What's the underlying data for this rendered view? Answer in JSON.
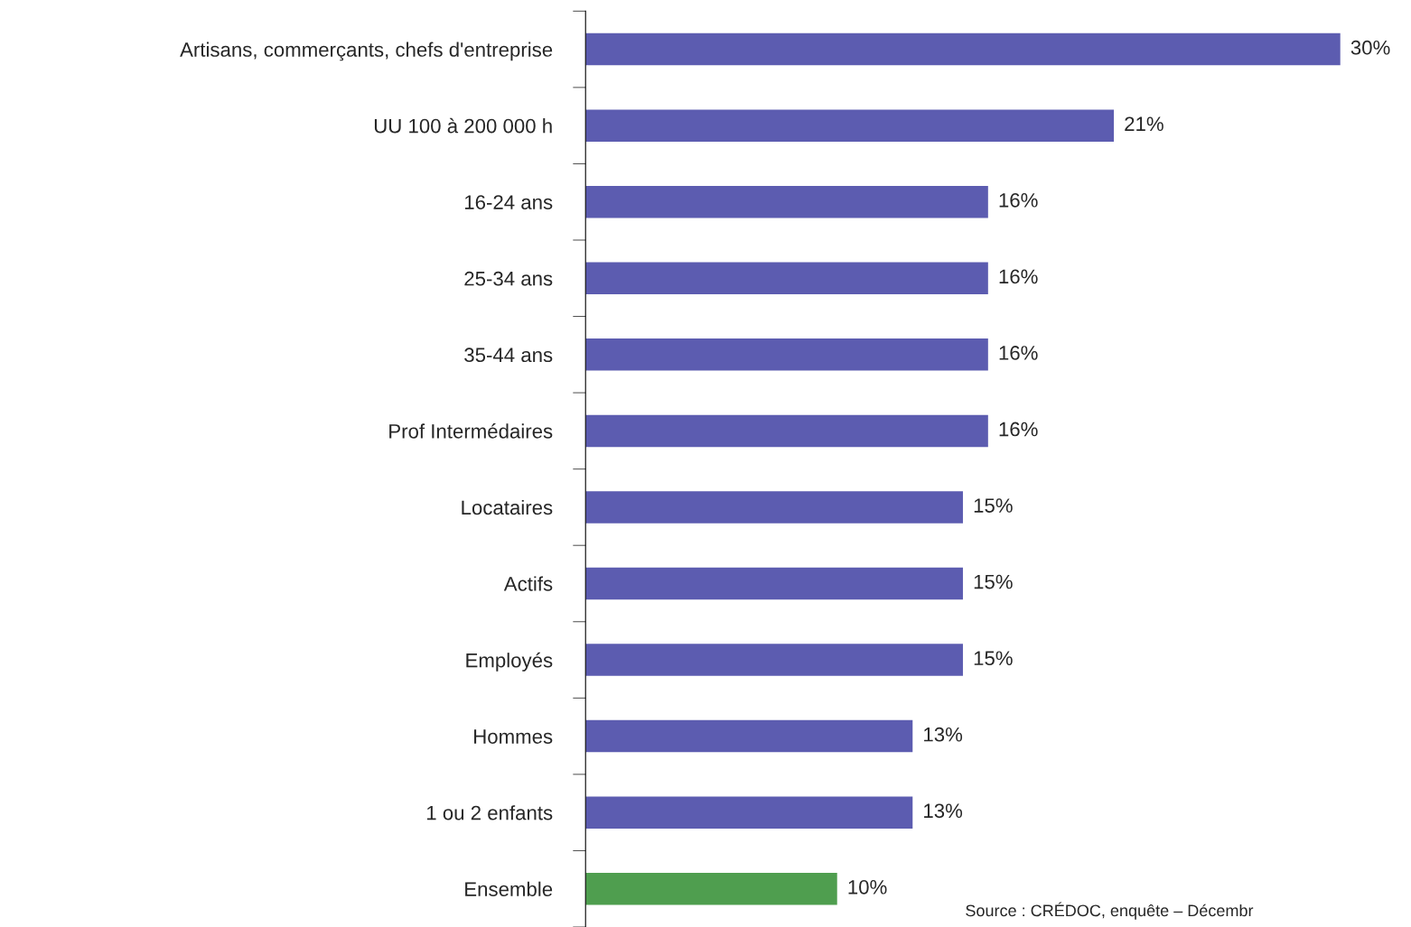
{
  "chart_data": {
    "type": "bar",
    "orientation": "horizontal",
    "categories": [
      "Artisans, commerçants, chefs d'entreprise",
      "UU 100 à 200 000 h",
      "16-24 ans",
      "25-34 ans",
      "35-44 ans",
      "Prof Intermédaires",
      "Locataires",
      "Actifs",
      "Employés",
      "Hommes",
      "1 ou 2 enfants",
      "Ensemble"
    ],
    "values": [
      30,
      21,
      16,
      16,
      16,
      16,
      15,
      15,
      15,
      13,
      13,
      10
    ],
    "value_labels": [
      "30%",
      "21%",
      "16%",
      "16%",
      "16%",
      "16%",
      "15%",
      "15%",
      "15%",
      "13%",
      "13%",
      "10%"
    ],
    "colors": [
      "#5c5cb0",
      "#5c5cb0",
      "#5c5cb0",
      "#5c5cb0",
      "#5c5cb0",
      "#5c5cb0",
      "#5c5cb0",
      "#5c5cb0",
      "#5c5cb0",
      "#5c5cb0",
      "#5c5cb0",
      "#4f9e4f"
    ],
    "annotations": [
      "Source : CRÉDOC, enquête – Décembr"
    ],
    "grid": false,
    "legend": false
  }
}
